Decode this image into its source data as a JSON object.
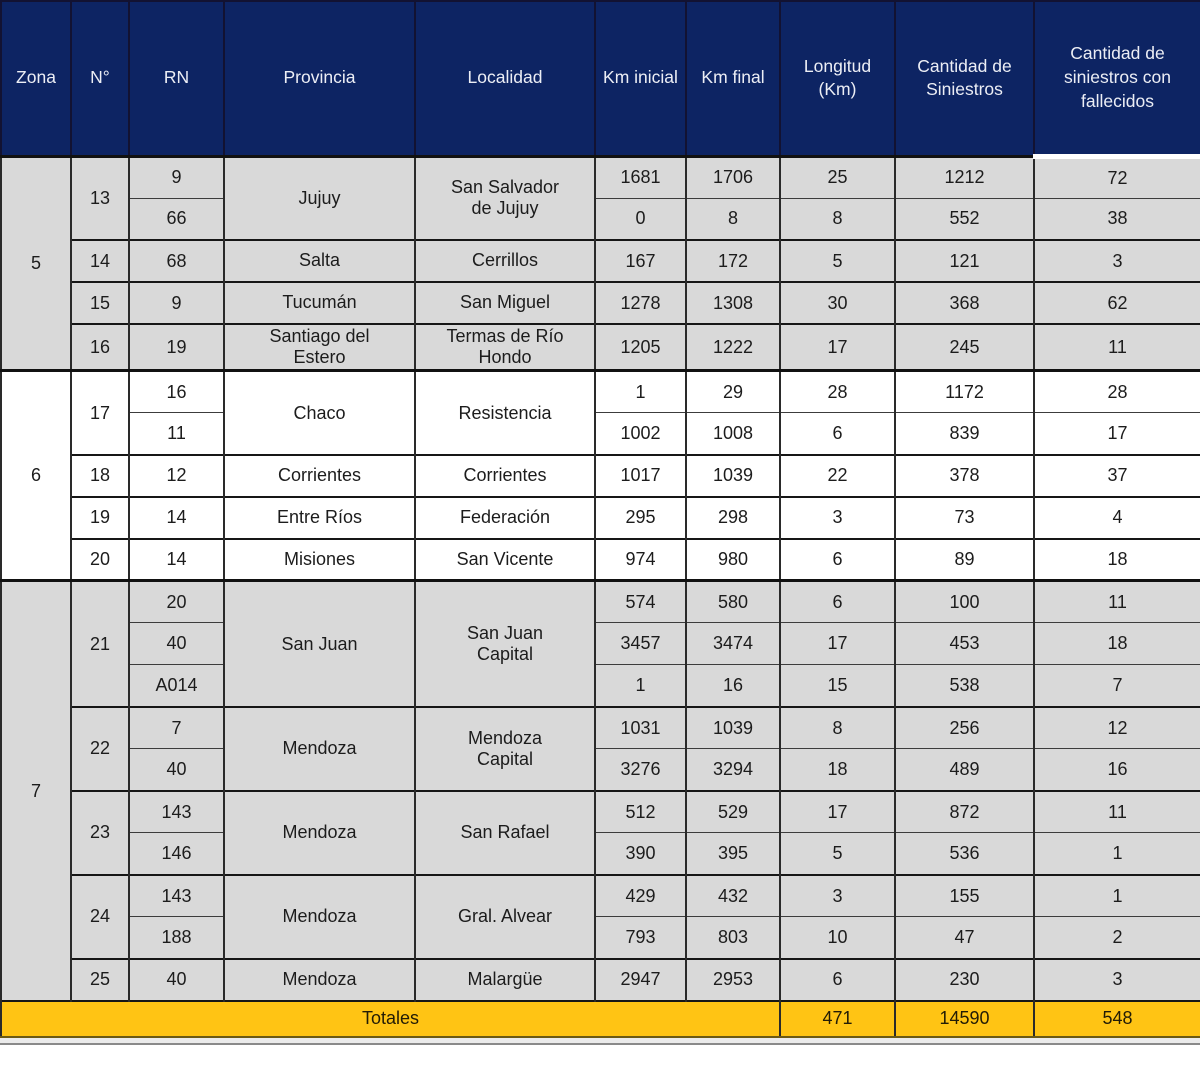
{
  "colors": {
    "header_bg": "#0d2463",
    "header_text": "#eceef5",
    "row_gray": "#d9d9d9",
    "row_white": "#ffffff",
    "totals_bg": "#ffc414",
    "border": "#161616"
  },
  "table": {
    "columns": [
      "Zona",
      "N°",
      "RN",
      "Provincia",
      "Localidad",
      "Km inicial",
      "Km final",
      "Longitud (Km)",
      "Cantidad de Siniestros",
      "Cantidad de siniestros con fallecidos"
    ],
    "zones": [
      {
        "zona": "5",
        "shade": "gray",
        "groups": [
          {
            "n": "13",
            "provincia": "Jujuy",
            "localidad": "San Salvador de Jujuy",
            "rows": [
              {
                "rn": "9",
                "km_inicial": "1681",
                "km_final": "1706",
                "longitud": "25",
                "siniestros": "1212",
                "fallecidos": "72"
              },
              {
                "rn": "66",
                "km_inicial": "0",
                "km_final": "8",
                "longitud": "8",
                "siniestros": "552",
                "fallecidos": "38"
              }
            ]
          },
          {
            "n": "14",
            "provincia": "Salta",
            "localidad": "Cerrillos",
            "rows": [
              {
                "rn": "68",
                "km_inicial": "167",
                "km_final": "172",
                "longitud": "5",
                "siniestros": "121",
                "fallecidos": "3"
              }
            ]
          },
          {
            "n": "15",
            "provincia": "Tucumán",
            "localidad": "San Miguel",
            "rows": [
              {
                "rn": "9",
                "km_inicial": "1278",
                "km_final": "1308",
                "longitud": "30",
                "siniestros": "368",
                "fallecidos": "62"
              }
            ]
          },
          {
            "n": "16",
            "provincia": "Santiago del Estero",
            "localidad": "Termas de Río Hondo",
            "rows": [
              {
                "rn": "19",
                "km_inicial": "1205",
                "km_final": "1222",
                "longitud": "17",
                "siniestros": "245",
                "fallecidos": "11"
              }
            ]
          }
        ]
      },
      {
        "zona": "6",
        "shade": "white",
        "groups": [
          {
            "n": "17",
            "provincia": "Chaco",
            "localidad": "Resistencia",
            "rows": [
              {
                "rn": "16",
                "km_inicial": "1",
                "km_final": "29",
                "longitud": "28",
                "siniestros": "1172",
                "fallecidos": "28"
              },
              {
                "rn": "11",
                "km_inicial": "1002",
                "km_final": "1008",
                "longitud": "6",
                "siniestros": "839",
                "fallecidos": "17"
              }
            ]
          },
          {
            "n": "18",
            "provincia": "Corrientes",
            "localidad": "Corrientes",
            "rows": [
              {
                "rn": "12",
                "km_inicial": "1017",
                "km_final": "1039",
                "longitud": "22",
                "siniestros": "378",
                "fallecidos": "37"
              }
            ]
          },
          {
            "n": "19",
            "provincia": "Entre Ríos",
            "localidad": "Federación",
            "rows": [
              {
                "rn": "14",
                "km_inicial": "295",
                "km_final": "298",
                "longitud": "3",
                "siniestros": "73",
                "fallecidos": "4"
              }
            ]
          },
          {
            "n": "20",
            "provincia": "Misiones",
            "localidad": "San Vicente",
            "rows": [
              {
                "rn": "14",
                "km_inicial": "974",
                "km_final": "980",
                "longitud": "6",
                "siniestros": "89",
                "fallecidos": "18"
              }
            ]
          }
        ]
      },
      {
        "zona": "7",
        "shade": "gray",
        "groups": [
          {
            "n": "21",
            "provincia": "San Juan",
            "localidad": "San Juan Capital",
            "rows": [
              {
                "rn": "20",
                "km_inicial": "574",
                "km_final": "580",
                "longitud": "6",
                "siniestros": "100",
                "fallecidos": "11"
              },
              {
                "rn": "40",
                "km_inicial": "3457",
                "km_final": "3474",
                "longitud": "17",
                "siniestros": "453",
                "fallecidos": "18"
              },
              {
                "rn": "A014",
                "km_inicial": "1",
                "km_final": "16",
                "longitud": "15",
                "siniestros": "538",
                "fallecidos": "7"
              }
            ]
          },
          {
            "n": "22",
            "provincia": "Mendoza",
            "localidad": "Mendoza Capital",
            "rows": [
              {
                "rn": "7",
                "km_inicial": "1031",
                "km_final": "1039",
                "longitud": "8",
                "siniestros": "256",
                "fallecidos": "12"
              },
              {
                "rn": "40",
                "km_inicial": "3276",
                "km_final": "3294",
                "longitud": "18",
                "siniestros": "489",
                "fallecidos": "16"
              }
            ]
          },
          {
            "n": "23",
            "provincia": "Mendoza",
            "localidad": "San Rafael",
            "rows": [
              {
                "rn": "143",
                "km_inicial": "512",
                "km_final": "529",
                "longitud": "17",
                "siniestros": "872",
                "fallecidos": "11"
              },
              {
                "rn": "146",
                "km_inicial": "390",
                "km_final": "395",
                "longitud": "5",
                "siniestros": "536",
                "fallecidos": "1"
              }
            ]
          },
          {
            "n": "24",
            "provincia": "Mendoza",
            "localidad": "Gral. Alvear",
            "rows": [
              {
                "rn": "143",
                "km_inicial": "429",
                "km_final": "432",
                "longitud": "3",
                "siniestros": "155",
                "fallecidos": "1"
              },
              {
                "rn": "188",
                "km_inicial": "793",
                "km_final": "803",
                "longitud": "10",
                "siniestros": "47",
                "fallecidos": "2"
              }
            ]
          },
          {
            "n": "25",
            "provincia": "Mendoza",
            "localidad": "Malargüe",
            "rows": [
              {
                "rn": "40",
                "km_inicial": "2947",
                "km_final": "2953",
                "longitud": "6",
                "siniestros": "230",
                "fallecidos": "3"
              }
            ]
          }
        ]
      }
    ],
    "totals": {
      "label": "Totales",
      "longitud": "471",
      "siniestros": "14590",
      "fallecidos": "548"
    }
  }
}
